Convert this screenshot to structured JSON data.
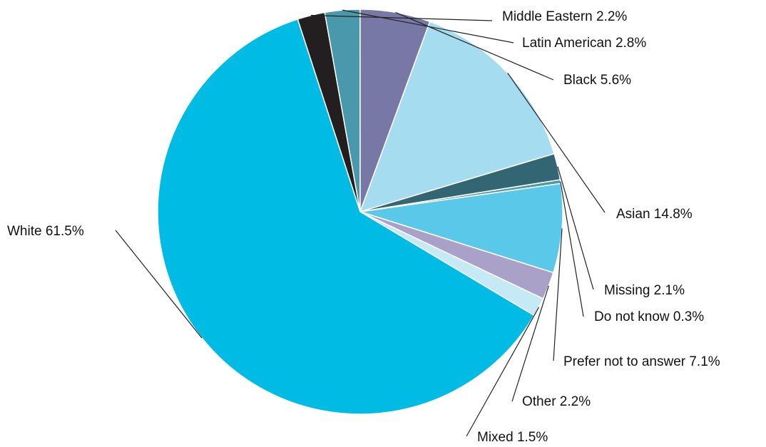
{
  "chart_data": {
    "type": "pie",
    "title": "",
    "slices": [
      {
        "label": "Middle Eastern",
        "value": 2.2,
        "display": "Middle Eastern 2.2%",
        "color": "#231F20"
      },
      {
        "label": "Latin American",
        "value": 2.8,
        "display": "Latin American 2.8%",
        "color": "#4A98AB"
      },
      {
        "label": "Black",
        "value": 5.6,
        "display": "Black 5.6%",
        "color": "#7878A6"
      },
      {
        "label": "Asian",
        "value": 14.8,
        "display": "Asian 14.8%",
        "color": "#A6DCEF"
      },
      {
        "label": "Missing",
        "value": 2.1,
        "display": "Missing 2.1%",
        "color": "#336673"
      },
      {
        "label": "Do not know",
        "value": 0.3,
        "display": "Do not know 0.3%",
        "color": "#4A98AB"
      },
      {
        "label": "Prefer not to answer",
        "value": 7.1,
        "display": "Prefer not to answer 7.1%",
        "color": "#5AC8E8"
      },
      {
        "label": "Other",
        "value": 2.2,
        "display": "Other 2.2%",
        "color": "#A9A1C8"
      },
      {
        "label": "Mixed",
        "value": 1.5,
        "display": "Mixed 1.5%",
        "color": "#C5E9F5"
      },
      {
        "label": "White",
        "value": 61.5,
        "display": "White 61.5%",
        "color": "#00BCE4"
      }
    ]
  }
}
